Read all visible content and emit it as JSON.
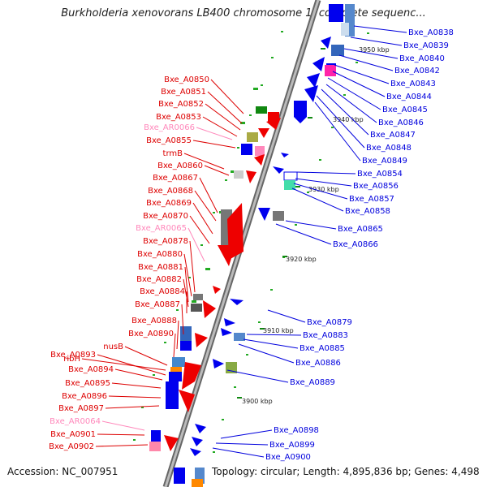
{
  "title": "Burkholderia xenovorans LB400 chromosome 1, complete sequenc...",
  "footer": {
    "accession_label": "Accession: NC_007951",
    "topology_label": "Topology: circular; Length: 4,895,836 bp; Genes: 4,498"
  },
  "colors": {
    "forward_gene": "#ff0000",
    "reverse_gene": "#0000ff",
    "rna_gene": "#ff88bb",
    "backbone": "#999999",
    "tick": "#118811"
  },
  "scale_labels": [
    "3950 kbp",
    "3940 kbp",
    "3930 kbp",
    "3920 kbp",
    "3910 kbp",
    "3900 kbp"
  ],
  "left_labels": [
    {
      "text": "Bxe_A0850",
      "kind": "fwd"
    },
    {
      "text": "Bxe_A0851",
      "kind": "fwd"
    },
    {
      "text": "Bxe_A0852",
      "kind": "fwd"
    },
    {
      "text": "Bxe_A0853",
      "kind": "fwd"
    },
    {
      "text": "Bxe_AR0066",
      "kind": "rna"
    },
    {
      "text": "Bxe_A0855",
      "kind": "fwd"
    },
    {
      "text": "trmB",
      "kind": "fwd"
    },
    {
      "text": "Bxe_A0860",
      "kind": "fwd"
    },
    {
      "text": "Bxe_A0867",
      "kind": "fwd"
    },
    {
      "text": "Bxe_A0868",
      "kind": "fwd"
    },
    {
      "text": "Bxe_A0869",
      "kind": "fwd"
    },
    {
      "text": "Bxe_A0870",
      "kind": "fwd"
    },
    {
      "text": "Bxe_AR0065",
      "kind": "rna"
    },
    {
      "text": "Bxe_A0878",
      "kind": "fwd"
    },
    {
      "text": "Bxe_A0880",
      "kind": "fwd"
    },
    {
      "text": "Bxe_A0881",
      "kind": "fwd"
    },
    {
      "text": "Bxe_A0882",
      "kind": "fwd"
    },
    {
      "text": "Bxe_A0884",
      "kind": "fwd"
    },
    {
      "text": "Bxe_A0887",
      "kind": "fwd"
    },
    {
      "text": "Bxe_A0888",
      "kind": "fwd"
    },
    {
      "text": "Bxe_A0890",
      "kind": "fwd"
    },
    {
      "text": "nusB",
      "kind": "fwd"
    },
    {
      "text": "ribH",
      "kind": "fwd"
    },
    {
      "text": "Bxe_A0893",
      "kind": "fwd"
    },
    {
      "text": "Bxe_A0894",
      "kind": "fwd"
    },
    {
      "text": "Bxe_A0895",
      "kind": "fwd"
    },
    {
      "text": "Bxe_A0896",
      "kind": "fwd"
    },
    {
      "text": "Bxe_A0897",
      "kind": "fwd"
    },
    {
      "text": "Bxe_AR0064",
      "kind": "rna"
    },
    {
      "text": "Bxe_A0901",
      "kind": "fwd"
    },
    {
      "text": "Bxe_A0902",
      "kind": "fwd"
    }
  ],
  "right_labels": [
    {
      "text": "Bxe_A0838"
    },
    {
      "text": "Bxe_A0839"
    },
    {
      "text": "Bxe_A0840"
    },
    {
      "text": "Bxe_A0842"
    },
    {
      "text": "Bxe_A0843"
    },
    {
      "text": "Bxe_A0844"
    },
    {
      "text": "Bxe_A0845"
    },
    {
      "text": "Bxe_A0846"
    },
    {
      "text": "Bxe_A0847"
    },
    {
      "text": "Bxe_A0848"
    },
    {
      "text": "Bxe_A0849"
    },
    {
      "text": "Bxe_A0854"
    },
    {
      "text": "Bxe_A0856"
    },
    {
      "text": "Bxe_A0857"
    },
    {
      "text": "Bxe_A0858"
    },
    {
      "text": "Bxe_A0865"
    },
    {
      "text": "Bxe_A0866"
    },
    {
      "text": "Bxe_A0879"
    },
    {
      "text": "Bxe_A0883"
    },
    {
      "text": "Bxe_A0885"
    },
    {
      "text": "Bxe_A0886"
    },
    {
      "text": "Bxe_A0889"
    },
    {
      "text": "Bxe_A0898"
    },
    {
      "text": "Bxe_A0899"
    },
    {
      "text": "Bxe_A0900"
    }
  ]
}
